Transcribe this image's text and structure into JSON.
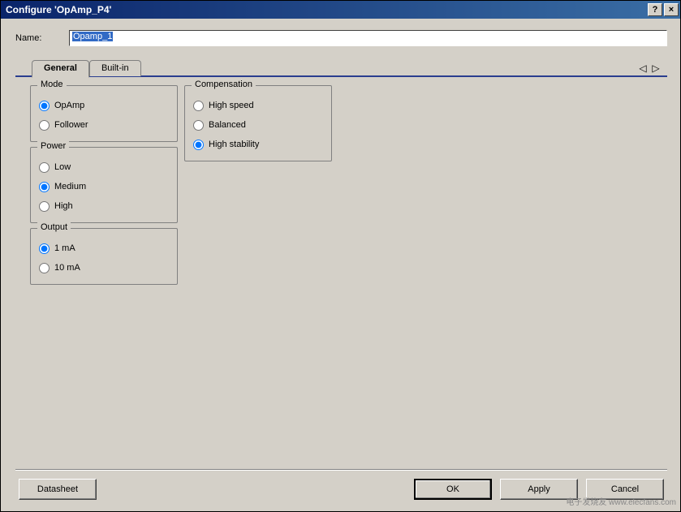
{
  "window": {
    "title": "Configure 'OpAmp_P4'",
    "help_btn": "?",
    "close_btn": "×"
  },
  "name_row": {
    "label": "Name:",
    "value": "Opamp_1"
  },
  "tabs": {
    "items": [
      {
        "label": "General",
        "active": true
      },
      {
        "label": "Built-in",
        "active": false
      }
    ],
    "nav_left": "◁",
    "nav_right": "▷"
  },
  "groups": {
    "mode": {
      "title": "Mode",
      "options": [
        {
          "label": "OpAmp",
          "selected": true
        },
        {
          "label": "Follower",
          "selected": false
        }
      ]
    },
    "power": {
      "title": "Power",
      "options": [
        {
          "label": "Low",
          "selected": false
        },
        {
          "label": "Medium",
          "selected": true
        },
        {
          "label": "High",
          "selected": false
        }
      ]
    },
    "output": {
      "title": "Output",
      "options": [
        {
          "label": "1 mA",
          "selected": true
        },
        {
          "label": "10 mA",
          "selected": false
        }
      ]
    },
    "compensation": {
      "title": "Compensation",
      "options": [
        {
          "label": "High speed",
          "selected": false
        },
        {
          "label": "Balanced",
          "selected": false
        },
        {
          "label": "High stability",
          "selected": true
        }
      ]
    }
  },
  "buttons": {
    "datasheet": "Datasheet",
    "ok": "OK",
    "apply": "Apply",
    "cancel": "Cancel"
  },
  "watermark": "电子发烧友 www.elecfans.com",
  "colors": {
    "titlebar_start": "#0a246a",
    "titlebar_end": "#3a6ea5",
    "face": "#d4d0c8",
    "tab_underline": "#2a3d8f",
    "selection": "#316ac5"
  }
}
